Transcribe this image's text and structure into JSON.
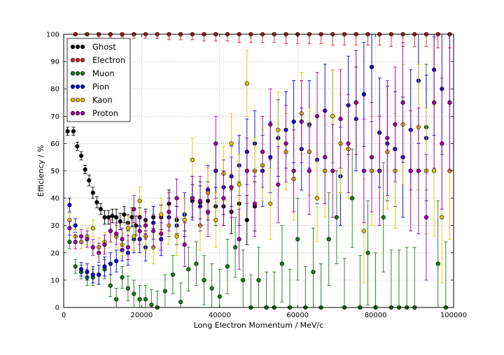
{
  "chart_data": {
    "type": "scatter",
    "title": "",
    "xlabel": "Long Electron Momentum / MeV/c",
    "ylabel": "Efficiency / %",
    "xlim": [
      0,
      100000
    ],
    "ylim": [
      0,
      100
    ],
    "xticks": [
      0,
      20000,
      40000,
      60000,
      80000,
      100000
    ],
    "yticks": [
      0,
      10,
      20,
      30,
      40,
      50,
      60,
      70,
      80,
      90,
      100
    ],
    "grid": true,
    "legend_position": "top-left",
    "series": [
      {
        "name": "Ghost",
        "color": "#000000",
        "x": [
          1000,
          2500,
          3500,
          4500,
          5500,
          6500,
          7500,
          8500,
          9500,
          10500,
          11500,
          12500,
          13500,
          14500,
          15500,
          16500,
          17500,
          18500,
          19500,
          21000,
          23000,
          25000,
          27000,
          29000,
          31000,
          33000,
          35000,
          37000,
          39000,
          41000,
          43000,
          45000,
          47000,
          49000
        ],
        "y": [
          64.5,
          64.5,
          59,
          55.5,
          50.5,
          46.5,
          42,
          38.5,
          36,
          33,
          33,
          33.5,
          33,
          31.5,
          34,
          31,
          33,
          30,
          33,
          32,
          33,
          33,
          38,
          32,
          34,
          39,
          38.5,
          39,
          37,
          37,
          35,
          38,
          32,
          37
        ],
        "err": [
          1.5,
          1.5,
          1.5,
          1.5,
          1.5,
          2,
          2,
          2,
          2,
          2.5,
          2.5,
          2.5,
          3,
          3,
          3,
          3,
          3.5,
          3.5,
          3.5,
          4,
          4,
          4.5,
          5,
          5,
          6,
          6,
          6,
          7,
          7,
          7,
          8,
          8,
          9,
          9
        ]
      },
      {
        "name": "Electron",
        "color": "#d62728",
        "x": [
          3000,
          6000,
          9000,
          12000,
          15000,
          18000,
          21000,
          24000,
          27000,
          30000,
          33000,
          36000,
          39000,
          42000,
          45000,
          48000,
          51000,
          54000,
          57000,
          60000,
          63000,
          66000,
          69000,
          72000,
          75000,
          78000,
          81000,
          84000,
          87000,
          90000,
          93000,
          96000,
          99000
        ],
        "y": [
          100,
          100,
          100,
          100,
          100,
          100,
          100,
          100,
          100,
          100,
          100,
          100,
          100,
          100,
          100,
          100,
          100,
          100,
          100,
          100,
          100,
          100,
          100,
          100,
          100,
          100,
          100,
          100,
          100,
          100,
          100,
          100,
          100
        ],
        "err": [
          0.5,
          0.5,
          1,
          1,
          1,
          1.5,
          1.5,
          1.5,
          2,
          2,
          2,
          2.5,
          2.5,
          2.5,
          3,
          3,
          3,
          3,
          3.5,
          3.5,
          3.5,
          3.5,
          4,
          4,
          4,
          4,
          4,
          4.5,
          4.5,
          4.5,
          4.5,
          5,
          5
        ]
      },
      {
        "name": "Muon",
        "color": "#1a7a1a",
        "x": [
          1500,
          3000,
          4500,
          6000,
          7500,
          9000,
          10500,
          12000,
          13500,
          15000,
          16500,
          18000,
          19500,
          21000,
          22500,
          24000,
          26000,
          28000,
          30000,
          32000,
          34000,
          36000,
          38000,
          40000,
          42000,
          44000,
          46000,
          48000,
          50000,
          52000,
          54000,
          56000,
          58000,
          60000,
          62000,
          64000,
          66000,
          68000,
          70000,
          72000,
          74000,
          76000,
          78000,
          80000,
          82000,
          84000,
          86000,
          88000,
          90000,
          93000,
          96000,
          98000
        ],
        "y": [
          24,
          15,
          13,
          11,
          11,
          12,
          14,
          8,
          3,
          11,
          7,
          5,
          3,
          3,
          1,
          0,
          6,
          12,
          2,
          14,
          16,
          10,
          7,
          4,
          15,
          22,
          10,
          0,
          10,
          0,
          0,
          16,
          0,
          25,
          0,
          13,
          0,
          25,
          33,
          0,
          40,
          0,
          20,
          0,
          33,
          0,
          0,
          0,
          0,
          66,
          16,
          0
        ],
        "err": [
          2.5,
          2.5,
          2.5,
          3,
          3,
          3.5,
          3.5,
          4,
          4,
          4,
          4.5,
          5,
          5,
          5,
          5.5,
          6,
          6,
          7,
          7,
          8,
          8,
          9,
          9,
          10,
          10,
          11,
          11,
          12,
          12,
          13,
          13,
          14,
          14,
          15,
          15,
          16,
          16,
          17,
          17,
          18,
          18,
          19,
          19,
          20,
          20,
          21,
          21,
          22,
          22,
          23,
          23,
          24
        ]
      },
      {
        "name": "Pion",
        "color": "#0000cc",
        "x": [
          1500,
          3000,
          4500,
          6000,
          7500,
          9000,
          10500,
          12000,
          13500,
          15000,
          16500,
          18000,
          19500,
          21000,
          23000,
          25000,
          27000,
          29000,
          31000,
          33000,
          35000,
          37000,
          39000,
          41000,
          43000,
          45000,
          47000,
          49000,
          51000,
          53000,
          55000,
          57000,
          59000,
          61000,
          63000,
          65000,
          67000,
          69000,
          71000,
          73000,
          75000,
          77000,
          79000,
          81000,
          83000,
          85000,
          87000,
          89000,
          91000,
          93000,
          95000,
          97000,
          99000
        ],
        "y": [
          37.5,
          30,
          14,
          13,
          12,
          12,
          15,
          16,
          17,
          21,
          20,
          25,
          25,
          22,
          31,
          25,
          33,
          30,
          34,
          40,
          37,
          43,
          50,
          44,
          48,
          52,
          57,
          60,
          50,
          55,
          62,
          65,
          68,
          58,
          67,
          54,
          72,
          70,
          48,
          74,
          69,
          78,
          88,
          64,
          60,
          58,
          55,
          65,
          83,
          62,
          87,
          80,
          75
        ],
        "err": [
          2.5,
          2.5,
          2.5,
          3,
          3,
          3.5,
          3.5,
          4,
          4,
          4,
          4.5,
          5,
          5,
          5,
          6,
          6,
          7,
          7,
          8,
          8,
          9,
          9,
          10,
          10,
          11,
          11,
          12,
          12,
          13,
          13,
          14,
          14,
          15,
          15,
          16,
          16,
          17,
          17,
          18,
          18,
          19,
          19,
          20,
          20,
          21,
          21,
          22,
          22,
          23,
          23,
          24,
          24,
          25
        ]
      },
      {
        "name": "Kaon",
        "color": "#e6c200",
        "x": [
          1500,
          3000,
          4500,
          6000,
          7500,
          9000,
          10500,
          12000,
          13500,
          15000,
          16500,
          18000,
          19500,
          21000,
          23000,
          25000,
          27000,
          29000,
          31000,
          33000,
          35000,
          37000,
          39000,
          41000,
          43000,
          45000,
          47000,
          49000,
          51000,
          53000,
          55000,
          57000,
          59000,
          61000,
          63000,
          65000,
          67000,
          69000,
          71000,
          73000,
          75000,
          77000,
          79000,
          81000,
          83000,
          85000,
          87000,
          89000,
          91000,
          93000,
          95000,
          97000,
          99000
        ],
        "y": [
          32,
          26,
          24,
          26,
          29,
          22,
          24,
          28,
          26,
          23,
          29,
          26,
          39,
          26,
          22,
          34,
          30,
          26,
          32,
          54,
          30,
          42,
          32,
          49,
          60,
          45,
          82,
          50,
          52,
          38,
          65,
          57,
          47,
          71,
          57,
          40,
          50,
          70,
          60,
          58,
          75,
          28,
          50,
          50,
          57,
          50,
          67,
          50,
          66,
          50,
          50,
          33,
          50
        ],
        "err": [
          2.5,
          2.5,
          2.5,
          3,
          3,
          3.5,
          3.5,
          4,
          4,
          4,
          4.5,
          5,
          5,
          5,
          6,
          6,
          7,
          7,
          8,
          8,
          9,
          9,
          10,
          10,
          11,
          11,
          12,
          12,
          13,
          13,
          14,
          14,
          15,
          15,
          16,
          16,
          17,
          17,
          18,
          18,
          19,
          19,
          20,
          20,
          21,
          21,
          22,
          22,
          23,
          23,
          24,
          24,
          25
        ]
      },
      {
        "name": "Proton",
        "color": "#a000a0",
        "x": [
          1500,
          3000,
          4500,
          6000,
          7500,
          9000,
          10500,
          12000,
          13500,
          15000,
          16500,
          18000,
          19500,
          21000,
          23000,
          25000,
          27000,
          29000,
          31000,
          33000,
          35000,
          37000,
          39000,
          41000,
          43000,
          45000,
          47000,
          49000,
          51000,
          53000,
          55000,
          57000,
          59000,
          61000,
          63000,
          65000,
          67000,
          69000,
          71000,
          73000,
          75000,
          77000,
          79000,
          81000,
          83000,
          85000,
          87000,
          89000,
          91000,
          93000,
          95000,
          97000,
          99000
        ],
        "y": [
          29,
          24,
          26,
          25,
          22,
          20,
          23,
          28,
          27,
          25,
          22,
          36,
          28,
          30,
          28,
          27,
          35,
          40,
          23,
          40,
          39,
          35,
          60,
          40,
          44,
          25,
          50,
          38,
          57,
          67,
          45,
          60,
          50,
          68,
          50,
          70,
          55,
          50,
          69,
          60,
          75,
          50,
          55,
          50,
          62,
          67,
          75,
          50,
          50,
          33,
          75,
          60,
          75
        ],
        "err": [
          2.5,
          2.5,
          2.5,
          3,
          3,
          3.5,
          3.5,
          4,
          4,
          4,
          4.5,
          5,
          5,
          5,
          6,
          6,
          7,
          7,
          8,
          8,
          9,
          9,
          10,
          10,
          11,
          11,
          12,
          12,
          13,
          13,
          14,
          14,
          15,
          15,
          16,
          16,
          17,
          17,
          18,
          18,
          19,
          19,
          20,
          20,
          21,
          21,
          22,
          22,
          23,
          23,
          24,
          24,
          25
        ]
      }
    ]
  }
}
